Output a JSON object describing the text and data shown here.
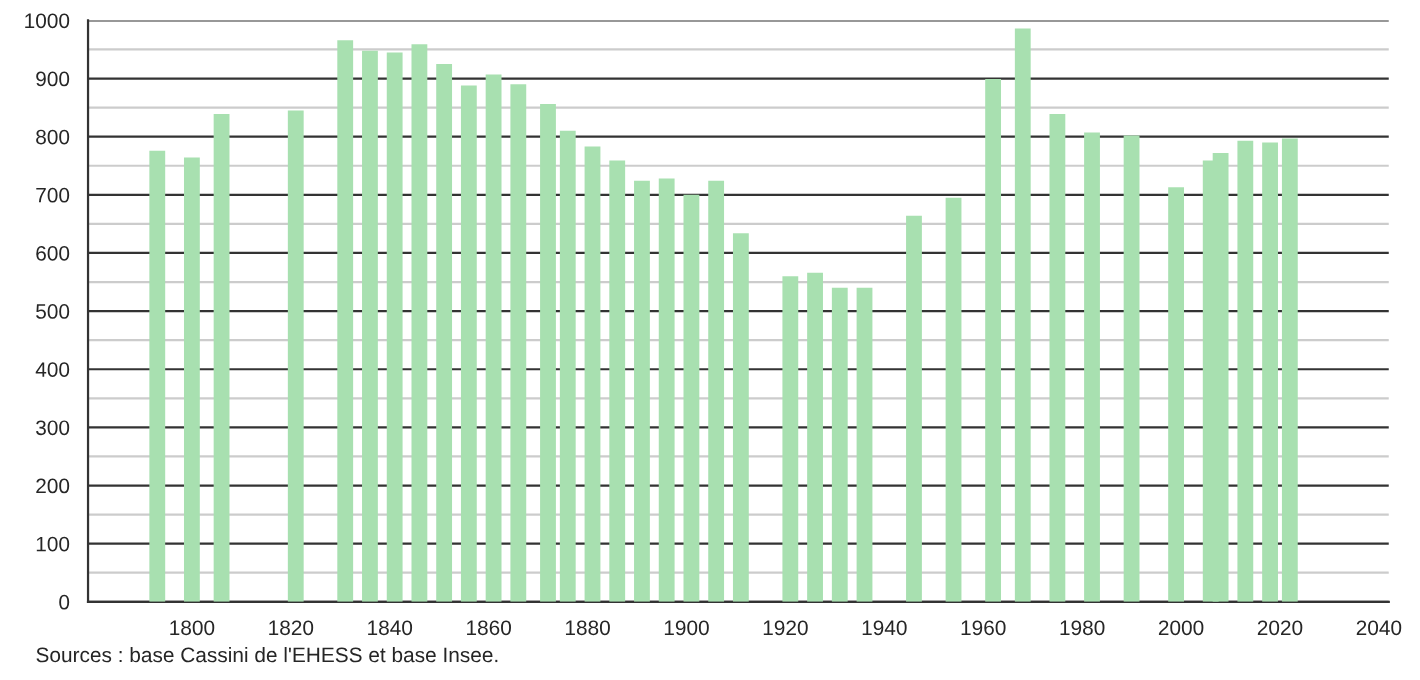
{
  "chart_data": {
    "type": "bar",
    "x": [
      1793,
      1800,
      1806,
      1821,
      1831,
      1836,
      1841,
      1846,
      1851,
      1856,
      1861,
      1866,
      1872,
      1876,
      1881,
      1886,
      1891,
      1896,
      1901,
      1906,
      1911,
      1921,
      1926,
      1931,
      1936,
      1946,
      1954,
      1962,
      1968,
      1975,
      1982,
      1990,
      1999,
      2006,
      2008,
      2013,
      2018,
      2022
    ],
    "values": [
      776,
      764,
      839,
      845,
      966,
      948,
      945,
      959,
      925,
      888,
      907,
      890,
      856,
      810,
      783,
      759,
      724,
      728,
      700,
      724,
      634,
      560,
      566,
      540,
      540,
      664,
      695,
      899,
      986,
      839,
      807,
      802,
      713,
      759,
      772,
      793,
      790,
      797
    ],
    "color": "#a8e0b0",
    "xlim": [
      1779,
      2042
    ],
    "xticks": [
      1800,
      1820,
      1840,
      1860,
      1880,
      1900,
      1920,
      1940,
      1960,
      1980,
      2000,
      2020,
      2040
    ],
    "ylim": [
      0,
      1000
    ],
    "yticks": [
      0,
      {
        "value": 50,
        "label": null
      },
      100,
      {
        "value": 150,
        "label": null
      },
      200,
      {
        "value": 250,
        "label": null
      },
      300,
      {
        "value": 350,
        "label": null
      },
      400,
      {
        "value": 450,
        "label": null
      },
      500,
      {
        "value": 550,
        "label": null
      },
      600,
      {
        "value": 650,
        "label": null
      },
      700,
      {
        "value": 750,
        "label": null
      },
      800,
      {
        "value": 850,
        "label": null
      },
      900,
      {
        "value": 950,
        "label": null
      },
      1000
    ],
    "grid": "y",
    "annotations": [
      "Sources : base Cassini de l'EHESS et base Insee."
    ]
  }
}
